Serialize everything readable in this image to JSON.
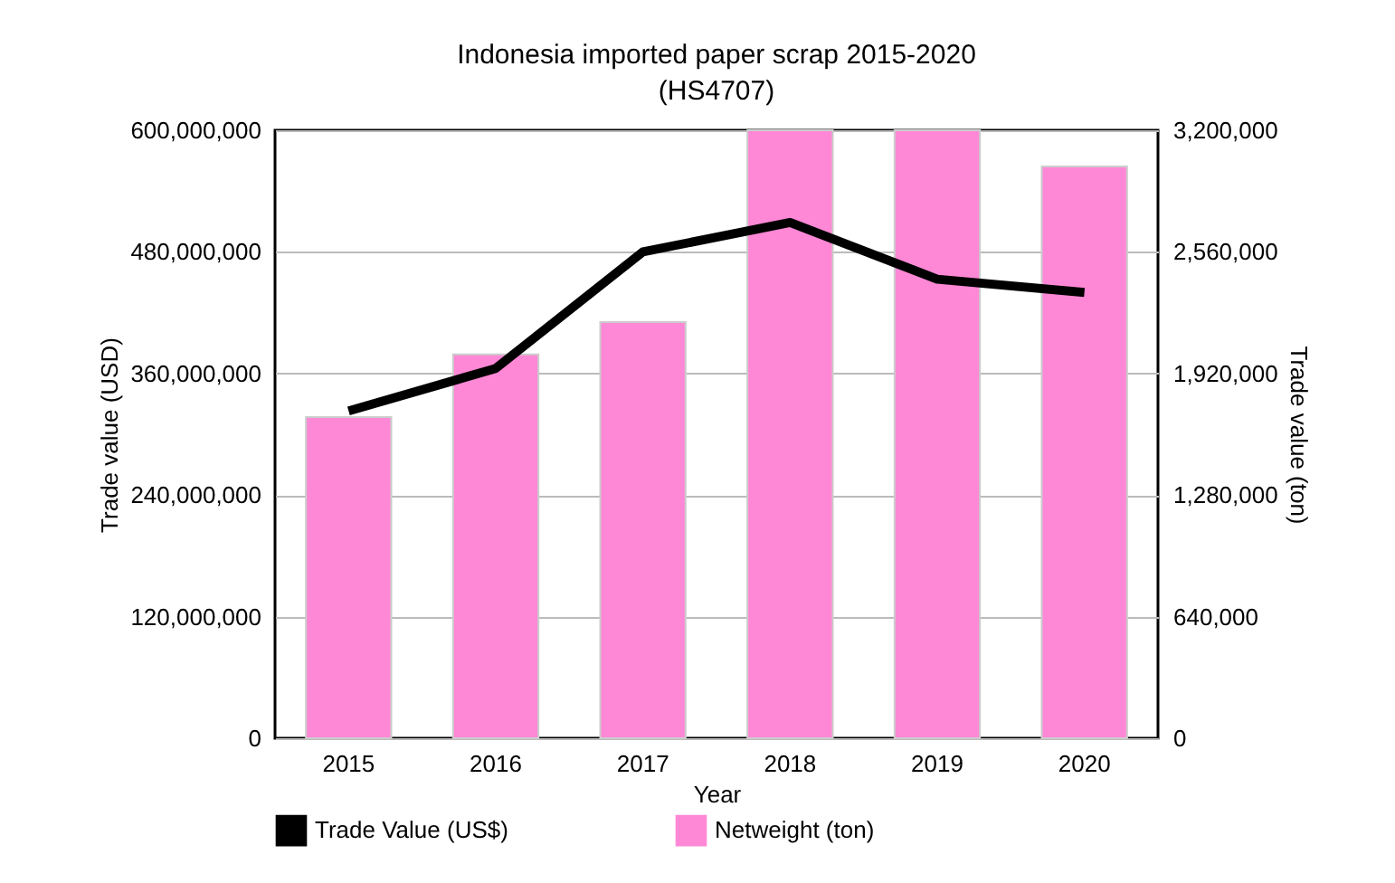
{
  "chart_data": {
    "type": "bar",
    "title": "Indonesia imported paper scrap 2015-2020\n(HS4707)",
    "xlabel": "Year",
    "ylabel": "Trade value (USD)",
    "y2label": "Trade value (ton)",
    "categories": [
      "2015",
      "2016",
      "2017",
      "2018",
      "2019",
      "2020"
    ],
    "series": [
      {
        "name": "Trade Value (US$)",
        "type": "line",
        "axis": "y",
        "color": "#000000",
        "values": [
          323000000,
          365000000,
          480000000,
          509000000,
          453000000,
          440000000
        ]
      },
      {
        "name": "Netweight (ton)",
        "axis": "y2",
        "color": "#ff88d6",
        "values": [
          1690000,
          2020000,
          2190000,
          3200000,
          3200000,
          3010000
        ]
      }
    ],
    "ylim": [
      0,
      600000000
    ],
    "yticks": [
      0,
      {
        "value": 120000000,
        "label": "120,000,000"
      },
      {
        "value": 240000000,
        "label": "240,000,000"
      },
      {
        "value": 360000000,
        "label": "360,000,000"
      },
      {
        "value": 480000000,
        "label": "480,000,000"
      },
      {
        "value": 600000000,
        "label": "600,000,000"
      }
    ],
    "y2lim": [
      0,
      3200000
    ],
    "y2ticks": [
      0,
      {
        "value": 640000,
        "label": "640,000"
      },
      {
        "value": 1280000,
        "label": "1,280,000"
      },
      {
        "value": 1920000,
        "label": "1,920,000"
      },
      {
        "value": 2560000,
        "label": "2,560,000"
      },
      {
        "value": 3200000,
        "label": "3,200,000"
      }
    ],
    "grid": "y",
    "legend": "bottom"
  }
}
